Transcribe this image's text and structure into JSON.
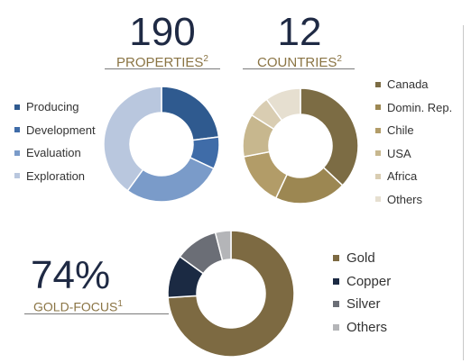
{
  "stats": {
    "properties": {
      "number": "190",
      "label": "PROPERTIES",
      "sup": "2"
    },
    "countries": {
      "number": "12",
      "label": "COUNTRIES",
      "sup": "2"
    },
    "gold_focus": {
      "number": "74%",
      "label": "GOLD-FOCUS",
      "sup": "1"
    }
  },
  "chart_data": [
    {
      "type": "pie",
      "variant": "donut",
      "categories": [
        "Producing",
        "Development",
        "Evaluation",
        "Exploration"
      ],
      "values": [
        23,
        9,
        28,
        40
      ],
      "colors": [
        "#2f5a8f",
        "#3f6ca8",
        "#7a9bc9",
        "#b9c7de"
      ],
      "legend_position": "left"
    },
    {
      "type": "pie",
      "variant": "donut",
      "categories": [
        "Canada",
        "Domin. Rep.",
        "Chile",
        "USA",
        "Africa",
        "Others"
      ],
      "values": [
        37,
        20,
        15,
        12,
        6,
        10
      ],
      "colors": [
        "#7c6c44",
        "#9c8752",
        "#b29c68",
        "#c7b78e",
        "#d9cdb2",
        "#e6dfd0"
      ],
      "legend_position": "right"
    },
    {
      "type": "pie",
      "variant": "donut",
      "categories": [
        "Gold",
        "Copper",
        "Silver",
        "Others"
      ],
      "values": [
        74,
        11,
        11,
        4
      ],
      "colors": [
        "#7d6a42",
        "#1b2a43",
        "#6b6e76",
        "#b4b5b8"
      ],
      "legend_position": "right"
    }
  ]
}
